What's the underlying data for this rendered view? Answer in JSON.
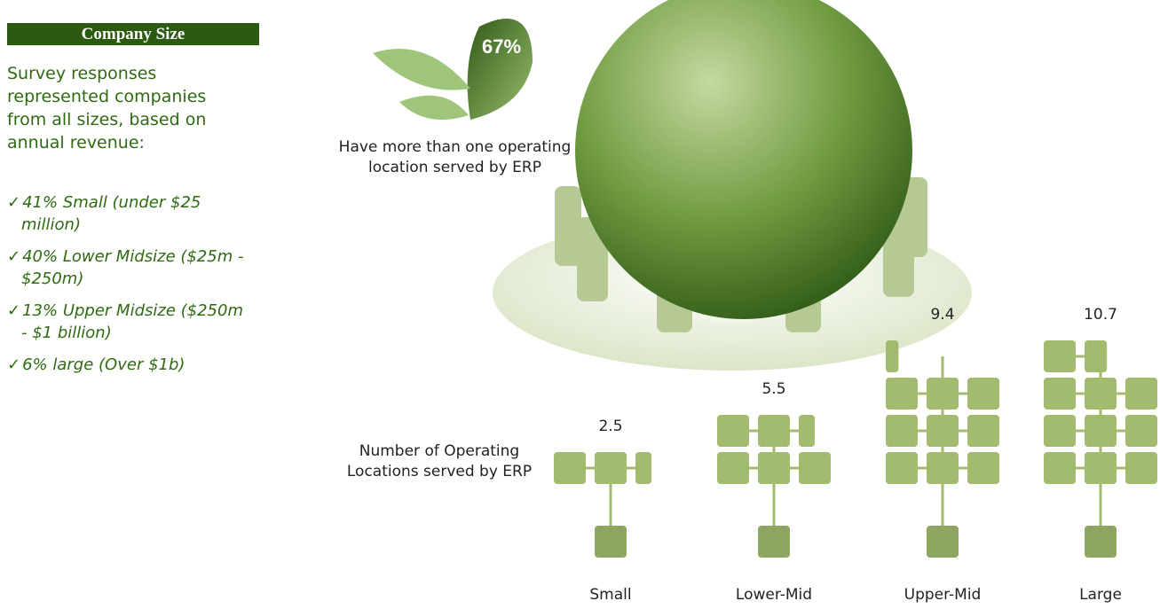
{
  "sidebar": {
    "title": "Company Size",
    "intro": "Survey responses represented companies from all sizes, based on annual revenue:",
    "items": [
      "41% Small (under $25 million)",
      "40% Lower Midsize ($25m - $250m)",
      "13% Upper Midsize ($250m - $1 billion)",
      "6% large (Over $1b)"
    ]
  },
  "callout": {
    "value": 67,
    "label": "67%",
    "text": "Have more than one operating location served by ERP"
  },
  "chart_data": {
    "type": "pictograph",
    "y_label": "Number of Operating Locations served by ERP",
    "categories": [
      "Small",
      "Lower-Mid",
      "Upper-Mid",
      "Large"
    ],
    "values": [
      2.5,
      5.5,
      9.4,
      10.7
    ],
    "color": "#a3bb6e"
  }
}
